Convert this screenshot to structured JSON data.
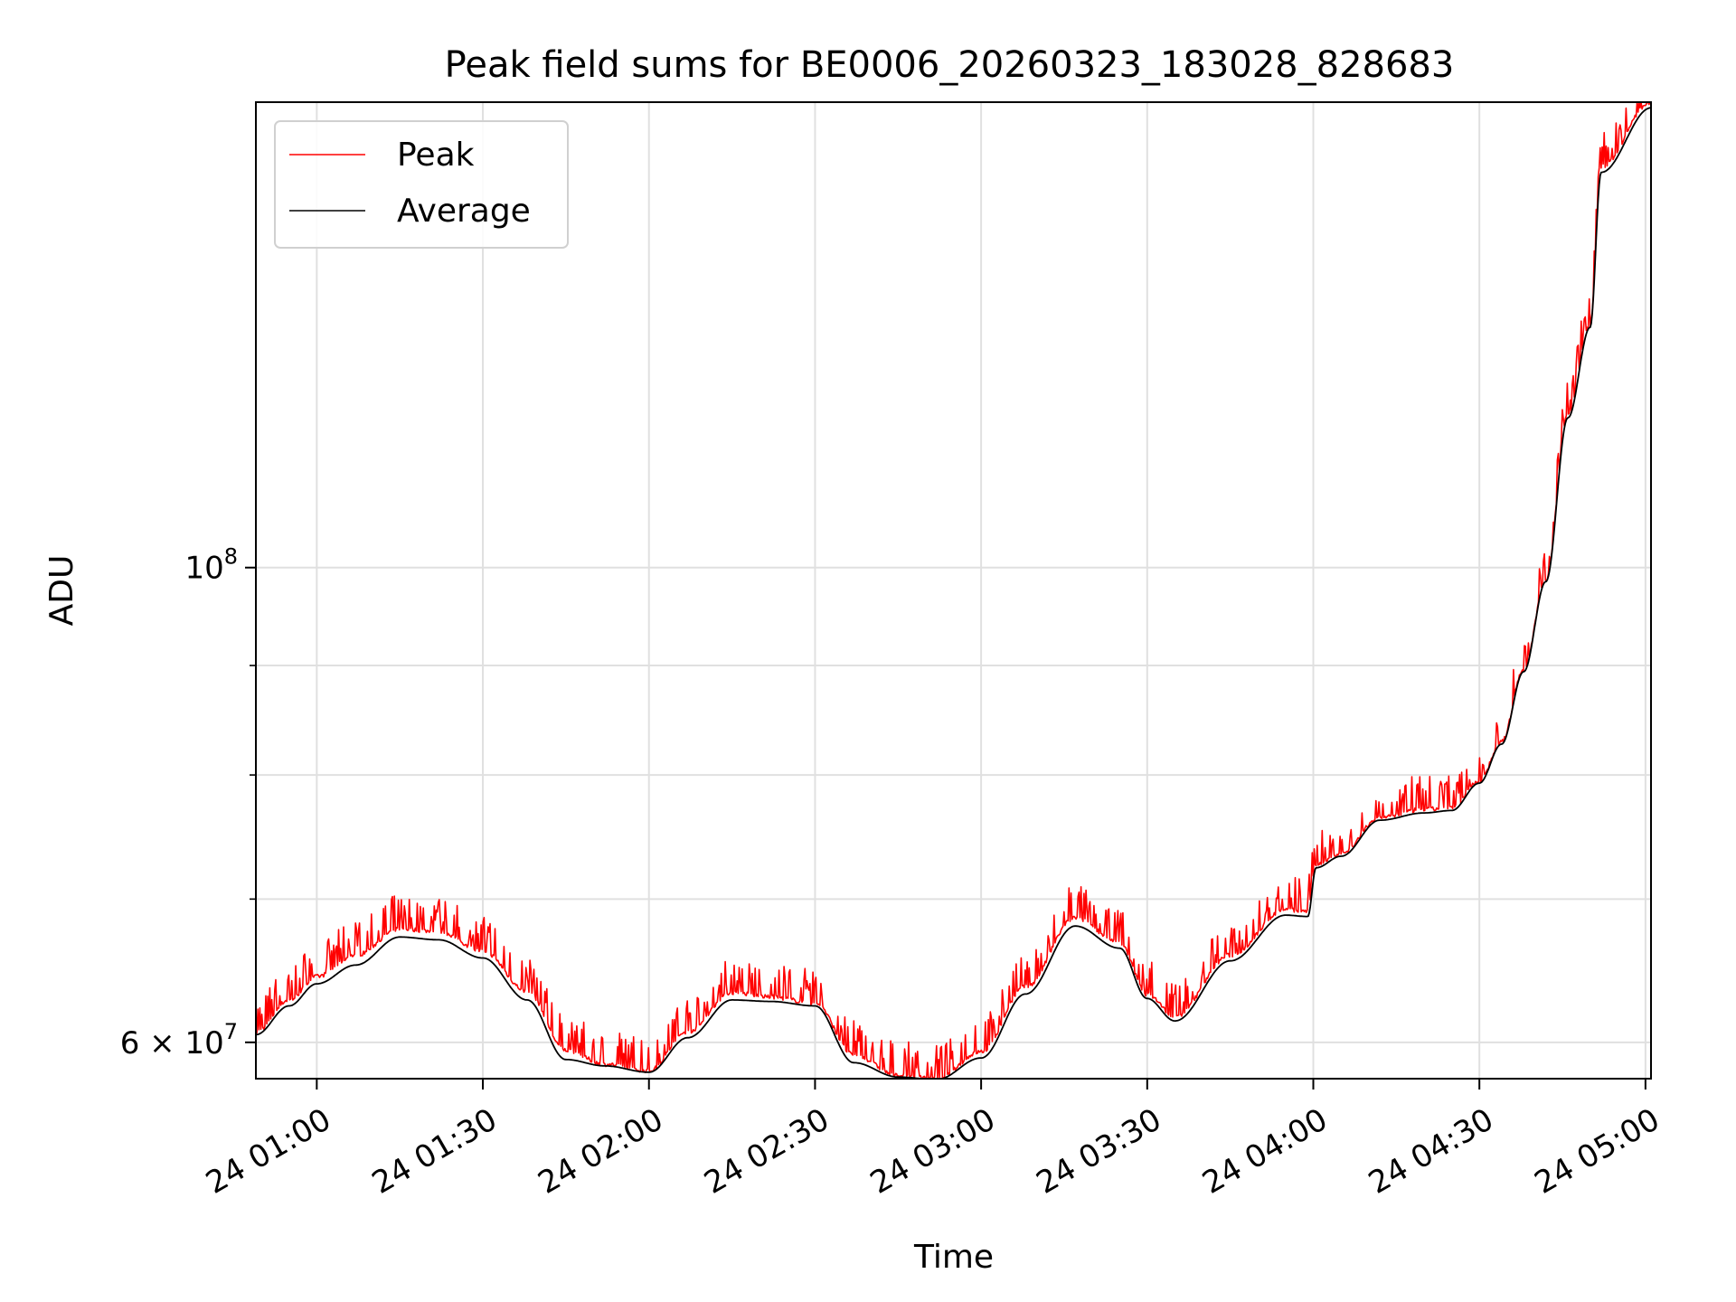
{
  "chart_data": {
    "type": "line",
    "title": "Peak field sums for BE0006_20260323_183028_828683",
    "xlabel": "Time",
    "ylabel": "ADU",
    "yscale": "log",
    "grid": true,
    "legend_position": "top-left",
    "xlim": [
      "2026-03-24T00:49:00",
      "2026-03-24T05:01:00"
    ],
    "ylim": [
      57700000,
      165000000
    ],
    "x_ticks": [
      {
        "x": "2026-03-24T01:00:00",
        "label": "24 01:00"
      },
      {
        "x": "2026-03-24T01:30:00",
        "label": "24 01:30"
      },
      {
        "x": "2026-03-24T02:00:00",
        "label": "24 02:00"
      },
      {
        "x": "2026-03-24T02:30:00",
        "label": "24 02:30"
      },
      {
        "x": "2026-03-24T03:00:00",
        "label": "24 03:00"
      },
      {
        "x": "2026-03-24T03:30:00",
        "label": "24 03:30"
      },
      {
        "x": "2026-03-24T04:00:00",
        "label": "24 04:00"
      },
      {
        "x": "2026-03-24T04:30:00",
        "label": "24 04:30"
      },
      {
        "x": "2026-03-24T05:00:00",
        "label": "24 05:00"
      }
    ],
    "y_ticks_major": [
      {
        "y": 60000000,
        "label": "6 × 10^7",
        "mantissa": "6 × 10",
        "exponent": "7"
      },
      {
        "y": 100000000,
        "label": "10^8",
        "mantissa": "10",
        "exponent": "8"
      }
    ],
    "y_ticks_minor": [
      70000000,
      80000000,
      90000000
    ],
    "y_gridlines": [
      60000000,
      70000000,
      80000000,
      90000000,
      100000000
    ],
    "series": [
      {
        "name": "Peak",
        "color": "#ff0000",
        "spike_noise": true,
        "x": [
          "2026-03-24T00:49:00",
          "2026-03-24T00:55:00",
          "2026-03-24T01:00:00",
          "2026-03-24T01:07:00",
          "2026-03-24T01:15:00",
          "2026-03-24T01:22:00",
          "2026-03-24T01:30:00",
          "2026-03-24T01:38:00",
          "2026-03-24T01:45:00",
          "2026-03-24T01:52:00",
          "2026-03-24T02:00:00",
          "2026-03-24T02:07:00",
          "2026-03-24T02:15:00",
          "2026-03-24T02:22:00",
          "2026-03-24T02:30:00",
          "2026-03-24T02:37:00",
          "2026-03-24T02:45:00",
          "2026-03-24T02:52:00",
          "2026-03-24T03:00:00",
          "2026-03-24T03:08:00",
          "2026-03-24T03:17:00",
          "2026-03-24T03:25:00",
          "2026-03-24T03:30:00",
          "2026-03-24T03:35:00",
          "2026-03-24T03:45:00",
          "2026-03-24T03:55:00",
          "2026-03-24T03:59:00",
          "2026-03-24T04:00:30",
          "2026-03-24T04:05:00",
          "2026-03-24T04:12:00",
          "2026-03-24T04:20:00",
          "2026-03-24T04:25:00",
          "2026-03-24T04:30:00",
          "2026-03-24T04:34:00",
          "2026-03-24T04:38:00",
          "2026-03-24T04:42:00",
          "2026-03-24T04:46:00",
          "2026-03-24T04:50:00",
          "2026-03-24T04:52:00",
          "2026-03-24T05:01:00"
        ],
        "y": [
          60700000,
          62800000,
          64400000,
          65900000,
          67800000,
          67600000,
          66200000,
          63400000,
          59500000,
          58600000,
          58200000,
          60700000,
          63300000,
          63000000,
          62600000,
          59200000,
          57900000,
          57700000,
          59400000,
          63700000,
          68600000,
          66800000,
          63200000,
          61700000,
          65900000,
          69200000,
          69100000,
          72700000,
          73500000,
          76400000,
          77100000,
          77200000,
          79500000,
          82900000,
          89600000,
          98700000,
          118000000,
          130000000,
          154000000,
          165000000
        ]
      },
      {
        "name": "Average",
        "color": "#000000",
        "spike_noise": false,
        "x": [
          "2026-03-24T00:49:00",
          "2026-03-24T00:55:00",
          "2026-03-24T01:00:00",
          "2026-03-24T01:07:00",
          "2026-03-24T01:15:00",
          "2026-03-24T01:22:00",
          "2026-03-24T01:30:00",
          "2026-03-24T01:38:00",
          "2026-03-24T01:45:00",
          "2026-03-24T01:52:00",
          "2026-03-24T02:00:00",
          "2026-03-24T02:07:00",
          "2026-03-24T02:15:00",
          "2026-03-24T02:22:00",
          "2026-03-24T02:30:00",
          "2026-03-24T02:37:00",
          "2026-03-24T02:45:00",
          "2026-03-24T02:52:00",
          "2026-03-24T03:00:00",
          "2026-03-24T03:08:00",
          "2026-03-24T03:17:00",
          "2026-03-24T03:25:00",
          "2026-03-24T03:30:00",
          "2026-03-24T03:35:00",
          "2026-03-24T03:45:00",
          "2026-03-24T03:55:00",
          "2026-03-24T03:59:00",
          "2026-03-24T04:00:30",
          "2026-03-24T04:05:00",
          "2026-03-24T04:12:00",
          "2026-03-24T04:20:00",
          "2026-03-24T04:25:00",
          "2026-03-24T04:30:00",
          "2026-03-24T04:34:00",
          "2026-03-24T04:38:00",
          "2026-03-24T04:42:00",
          "2026-03-24T04:46:00",
          "2026-03-24T04:50:00",
          "2026-03-24T04:52:00",
          "2026-03-24T05:01:00"
        ],
        "y": [
          60500000,
          62400000,
          63900000,
          65200000,
          67200000,
          67000000,
          65700000,
          62800000,
          58900000,
          58500000,
          58100000,
          60300000,
          62800000,
          62700000,
          62400000,
          58700000,
          57800000,
          57650000,
          59000000,
          63200000,
          68000000,
          66400000,
          62900000,
          61400000,
          65500000,
          68800000,
          68700000,
          72400000,
          73300000,
          76200000,
          76800000,
          77000000,
          79300000,
          82700000,
          89400000,
          98500000,
          117500000,
          129500000,
          153000000,
          164000000
        ]
      }
    ]
  }
}
